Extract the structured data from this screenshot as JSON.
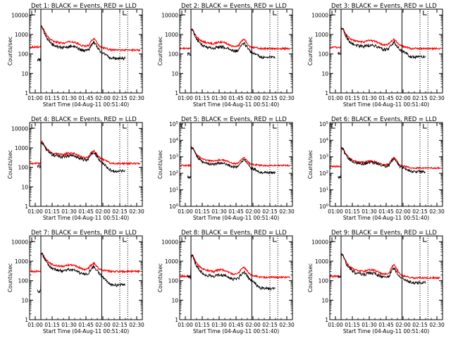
{
  "figure": {
    "background": "#ffffff"
  },
  "chart_data": [
    {
      "type": "line",
      "title": "Det 1: BLACK = Events, RED = LLD",
      "xlabel": "Start Time (04-Aug-11 00:51:40)",
      "ylabel": "Counts/sec",
      "xticks": [
        "01:00",
        "01:15",
        "01:30",
        "01:45",
        "02:00",
        "02:15",
        "02:30"
      ],
      "yticks": [
        "1",
        "10",
        "100",
        "1000",
        "10000"
      ],
      "ylog": true,
      "ylim": [
        1,
        20000
      ],
      "xlim_min": [
        55,
        155
      ],
      "annotation_label": "L",
      "vlines": [
        {
          "x": 65,
          "style": "solid"
        },
        {
          "x": 119,
          "style": "solid"
        },
        {
          "x": 135,
          "style": "dotted"
        },
        {
          "x": 142,
          "style": "dotted"
        }
      ],
      "series": [
        {
          "color": "#ff0000",
          "kind": "red",
          "pre": 230,
          "peak": 2600,
          "mid": 340,
          "bump": 640,
          "end": 160
        },
        {
          "color": "#000000",
          "kind": "black",
          "pre": 50,
          "peak": 2500,
          "mid": 200,
          "bump": 430,
          "end": 60
        }
      ]
    },
    {
      "type": "line",
      "title": "Det 2: BLACK = Events, RED = LLD",
      "xlabel": "Start Time (04-Aug-11 00:51:40)",
      "ylabel": "Counts/sec",
      "xticks": [
        "01:00",
        "01:15",
        "01:30",
        "01:45",
        "02:00",
        "02:15",
        "02:30"
      ],
      "yticks": [
        "1",
        "10",
        "100",
        "1000",
        "10000"
      ],
      "ylog": true,
      "ylim": [
        1,
        20000
      ],
      "xlim_min": [
        55,
        155
      ],
      "annotation_label": "L",
      "vlines": [
        {
          "x": 65,
          "style": "solid"
        },
        {
          "x": 119,
          "style": "solid"
        },
        {
          "x": 135,
          "style": "dotted"
        },
        {
          "x": 142,
          "style": "dotted"
        }
      ],
      "series": [
        {
          "color": "#ff0000",
          "kind": "red",
          "pre": 190,
          "peak": 1900,
          "mid": 330,
          "bump": 580,
          "end": 190
        },
        {
          "color": "#000000",
          "kind": "black",
          "pre": 100,
          "peak": 1800,
          "mid": 190,
          "bump": 380,
          "end": 70
        }
      ]
    },
    {
      "type": "line",
      "title": "Det 3: BLACK = Events, RED = LLD",
      "xlabel": "Start Time (04-Aug-11 00:51:40)",
      "ylabel": "Counts/sec",
      "xticks": [
        "01:00",
        "01:15",
        "01:30",
        "01:45",
        "02:00",
        "02:15",
        "02:30"
      ],
      "yticks": [
        "1",
        "10",
        "100",
        "1000",
        "10000"
      ],
      "ylog": true,
      "ylim": [
        1,
        20000
      ],
      "xlim_min": [
        55,
        155
      ],
      "annotation_label": "L",
      "vlines": [
        {
          "x": 65,
          "style": "solid"
        },
        {
          "x": 119,
          "style": "solid"
        },
        {
          "x": 135,
          "style": "dotted"
        },
        {
          "x": 142,
          "style": "dotted"
        }
      ],
      "series": [
        {
          "color": "#ff0000",
          "kind": "red",
          "pre": 220,
          "peak": 2200,
          "mid": 390,
          "bump": 560,
          "end": 190
        },
        {
          "color": "#000000",
          "kind": "black",
          "pre": 110,
          "peak": 2100,
          "mid": 230,
          "bump": 400,
          "end": 70
        }
      ]
    },
    {
      "type": "line",
      "title": "Det 4: BLACK = Events, RED = LLD",
      "xlabel": "Start Time (04-Aug-11 00:51:40)",
      "ylabel": "Counts/sec",
      "xticks": [
        "01:00",
        "01:15",
        "01:30",
        "01:45",
        "02:00",
        "02:15",
        "02:30"
      ],
      "yticks": [
        "1",
        "10",
        "100",
        "1000",
        "10000"
      ],
      "ylog": true,
      "ylim": [
        1,
        20000
      ],
      "xlim_min": [
        55,
        155
      ],
      "annotation_label": "L",
      "vlines": [
        {
          "x": 65,
          "style": "solid"
        },
        {
          "x": 119,
          "style": "solid"
        },
        {
          "x": 135,
          "style": "dotted"
        },
        {
          "x": 142,
          "style": "dotted"
        }
      ],
      "series": [
        {
          "color": "#ff0000",
          "kind": "red",
          "pre": 160,
          "peak": 2100,
          "mid": 430,
          "bump": 720,
          "end": 160
        },
        {
          "color": "#000000",
          "kind": "black",
          "pre": 110,
          "peak": 2000,
          "mid": 330,
          "bump": 600,
          "end": 65
        }
      ]
    },
    {
      "type": "line",
      "title": "Det 5: BLACK = Events, RED = LLD",
      "xlabel": "Start Time (04-Aug-11 00:51:40)",
      "ylabel": "Counts/sec",
      "xticks": [
        "01:00",
        "01:15",
        "01:30",
        "01:45",
        "02:00",
        "02:15",
        "02:30"
      ],
      "yticks": [
        "10^0",
        "10^1",
        "10^2",
        "10^3",
        "10^4",
        "10^5"
      ],
      "ylog": true,
      "ylim": [
        1,
        120000
      ],
      "xlim_min": [
        55,
        155
      ],
      "annotation_label": "L",
      "vlines": [
        {
          "x": 65,
          "style": "solid"
        },
        {
          "x": 119,
          "style": "solid"
        },
        {
          "x": 135,
          "style": "dotted"
        },
        {
          "x": 142,
          "style": "dotted"
        }
      ],
      "series": [
        {
          "color": "#ff0000",
          "kind": "red",
          "pre": 300,
          "peak": 4000,
          "mid": 520,
          "bump": 900,
          "end": 300
        },
        {
          "color": "#000000",
          "kind": "black",
          "pre": 60,
          "peak": 3800,
          "mid": 330,
          "bump": 700,
          "end": 110
        }
      ]
    },
    {
      "type": "line",
      "title": "Det 6: BLACK = Events, RED = LLD",
      "xlabel": "Start Time (04-Aug-11 00:51:40)",
      "ylabel": "Counts/sec",
      "xticks": [
        "01:00",
        "01:15",
        "01:30",
        "01:45",
        "02:00",
        "02:15",
        "02:30"
      ],
      "yticks": [
        "10^0",
        "10^1",
        "10^2",
        "10^3",
        "10^4",
        "10^5"
      ],
      "ylog": true,
      "ylim": [
        1,
        120000
      ],
      "xlim_min": [
        55,
        155
      ],
      "annotation_label": "L",
      "vlines": [
        {
          "x": 65,
          "style": "solid"
        },
        {
          "x": 119,
          "style": "solid"
        },
        {
          "x": 135,
          "style": "dotted"
        },
        {
          "x": 142,
          "style": "dotted"
        }
      ],
      "series": [
        {
          "color": "#ff0000",
          "kind": "red",
          "pre": 260,
          "peak": 3500,
          "mid": 440,
          "bump": 950,
          "end": 210
        },
        {
          "color": "#000000",
          "kind": "black",
          "pre": 60,
          "peak": 3300,
          "mid": 360,
          "bump": 750,
          "end": 130
        }
      ]
    },
    {
      "type": "line",
      "title": "Det 7: BLACK = Events, RED = LLD",
      "xlabel": "Start Time (04-Aug-11 00:51:40)",
      "ylabel": "Counts/sec",
      "xticks": [
        "01:00",
        "01:15",
        "01:30",
        "01:45",
        "02:00",
        "02:15",
        "02:30"
      ],
      "yticks": [
        "1",
        "10",
        "100",
        "1000",
        "10000"
      ],
      "ylog": true,
      "ylim": [
        1,
        20000
      ],
      "xlim_min": [
        55,
        155
      ],
      "annotation_label": "L",
      "vlines": [
        {
          "x": 65,
          "style": "solid"
        },
        {
          "x": 119,
          "style": "solid"
        },
        {
          "x": 135,
          "style": "dotted"
        },
        {
          "x": 142,
          "style": "dotted"
        }
      ],
      "series": [
        {
          "color": "#ff0000",
          "kind": "red",
          "pre": 300,
          "peak": 2600,
          "mid": 520,
          "bump": 800,
          "end": 300
        },
        {
          "color": "#000000",
          "kind": "black",
          "pre": 30,
          "peak": 2500,
          "mid": 300,
          "bump": 550,
          "end": 60
        }
      ]
    },
    {
      "type": "line",
      "title": "Det 8: BLACK = Events, RED = LLD",
      "xlabel": "Start Time (04-Aug-11 00:51:40)",
      "ylabel": "Counts/sec",
      "xticks": [
        "01:00",
        "01:15",
        "01:30",
        "01:45",
        "02:00",
        "02:15",
        "02:30"
      ],
      "yticks": [
        "1",
        "10",
        "100",
        "1000",
        "10000"
      ],
      "ylog": true,
      "ylim": [
        1,
        20000
      ],
      "xlim_min": [
        55,
        155
      ],
      "annotation_label": "L",
      "vlines": [
        {
          "x": 65,
          "style": "solid"
        },
        {
          "x": 119,
          "style": "solid"
        },
        {
          "x": 135,
          "style": "dotted"
        },
        {
          "x": 142,
          "style": "dotted"
        }
      ],
      "series": [
        {
          "color": "#ff0000",
          "kind": "red",
          "pre": 170,
          "peak": 2200,
          "mid": 290,
          "bump": 500,
          "end": 150
        },
        {
          "color": "#000000",
          "kind": "black",
          "pre": 160,
          "peak": 2100,
          "mid": 160,
          "bump": 300,
          "end": 40
        }
      ]
    },
    {
      "type": "line",
      "title": "Det 9: BLACK = Events, RED = LLD",
      "xlabel": "Start Time (04-Aug-11 00:51:40)",
      "ylabel": "Counts/sec",
      "xticks": [
        "01:00",
        "01:15",
        "01:30",
        "01:45",
        "02:00",
        "02:15",
        "02:30"
      ],
      "yticks": [
        "1",
        "10",
        "100",
        "1000",
        "10000"
      ],
      "ylog": true,
      "ylim": [
        1,
        20000
      ],
      "xlim_min": [
        55,
        155
      ],
      "annotation_label": "L",
      "vlines": [
        {
          "x": 65,
          "style": "solid"
        },
        {
          "x": 119,
          "style": "solid"
        },
        {
          "x": 135,
          "style": "dotted"
        },
        {
          "x": 142,
          "style": "dotted"
        }
      ],
      "series": [
        {
          "color": "#ff0000",
          "kind": "red",
          "pre": 170,
          "peak": 2400,
          "mid": 290,
          "bump": 700,
          "end": 140
        },
        {
          "color": "#000000",
          "kind": "black",
          "pre": 170,
          "peak": 2300,
          "mid": 200,
          "bump": 450,
          "end": 80
        }
      ]
    }
  ]
}
